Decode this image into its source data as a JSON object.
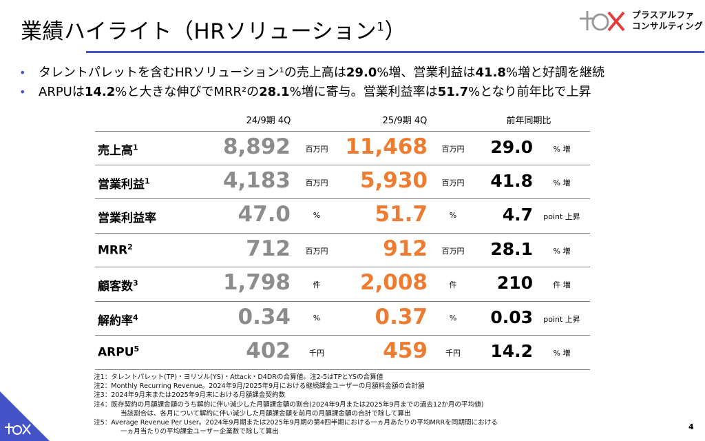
{
  "title": {
    "text": "業績ハイライト（HRソリューション",
    "sup": "1",
    "close": "）"
  },
  "logo": {
    "line1": "プラスアルファ",
    "line2": "コンサルティング"
  },
  "bullets": [
    {
      "t1": "タレントパレットを含むHRソリューション¹の売上高は",
      "b1": "29.0",
      "t2": "%増、営業利益は",
      "b2": "41.8",
      "t3": "%増と好調を継続"
    },
    {
      "t0": "ARPUは",
      "b0": "14.2",
      "t1": "%と大きな伸びでMRR²の",
      "b1": "28.1",
      "t2": "%増に寄与。営業利益率は",
      "b2": "51.7",
      "t3": "%となり前年比で上昇"
    }
  ],
  "table": {
    "headers": {
      "prev": "24/9期 4Q",
      "curr": "25/9期 4Q",
      "yoy": "前年同期比"
    },
    "rows": [
      {
        "metric": "売上高",
        "sup": "1",
        "prev": "8,892",
        "prev_unit": "百万円",
        "curr": "11,468",
        "curr_unit": "百万円",
        "yoy": "29.0",
        "yoy_unit": "% 増"
      },
      {
        "metric": "営業利益",
        "sup": "1",
        "prev": "4,183",
        "prev_unit": "百万円",
        "curr": "5,930",
        "curr_unit": "百万円",
        "yoy": "41.8",
        "yoy_unit": "% 増"
      },
      {
        "metric": "営業利益率",
        "sup": "",
        "prev": "47.0",
        "prev_unit": "%",
        "curr": "51.7",
        "curr_unit": "%",
        "yoy": "4.7",
        "yoy_unit": "point 上昇"
      },
      {
        "metric": "MRR",
        "sup": "2",
        "prev": "712",
        "prev_unit": "百万円",
        "curr": "912",
        "curr_unit": "百万円",
        "yoy": "28.1",
        "yoy_unit": "% 増"
      },
      {
        "metric": "顧客数",
        "sup": "3",
        "prev": "1,798",
        "prev_unit": "件",
        "curr": "2,008",
        "curr_unit": "件",
        "yoy": "210",
        "yoy_unit": "件 増"
      },
      {
        "metric": "解約率",
        "sup": "4",
        "prev": "0.34",
        "prev_unit": "%",
        "curr": "0.37",
        "curr_unit": "%",
        "yoy": "0.03",
        "yoy_unit": "point 上昇"
      },
      {
        "metric": "ARPU",
        "sup": "5",
        "prev": "402",
        "prev_unit": "千円",
        "curr": "459",
        "curr_unit": "千円",
        "yoy": "14.2",
        "yoy_unit": "% 増"
      }
    ]
  },
  "notes": [
    "注1：タレントパレット(TP)・ヨリソル(YS)・Attack・D4DRの合算値。注2-5はTPとYSの合算値",
    "注2：Monthly Recurring Revenue。2024年9月/2025年9月における継続課金ユーザーの月額料金額の合計額",
    "注3：2024年9月末または2025年9月末における月額課金契約数",
    "注4：既存契約の月額課金額のうち解約に伴い減少した月額課金額の割合(2024年9月または2025年9月までの過去12か月の平均値)",
    "当該割合は、各月について解約に伴い減少した月額課金額を前月の月額課金額の合計で除して算出",
    "注5：Average Revenue Per User。2024年9月期または2025年9月期の第4四半期における一ヵ月あたりの平均MRRを同期間における",
    "一ヵ月当たりの平均課金ユーザー企業数で除して算出"
  ],
  "page_number": "4",
  "colors": {
    "accent": "#4454c8",
    "orange": "#ed7b30",
    "grey": "#8c8c8c"
  }
}
